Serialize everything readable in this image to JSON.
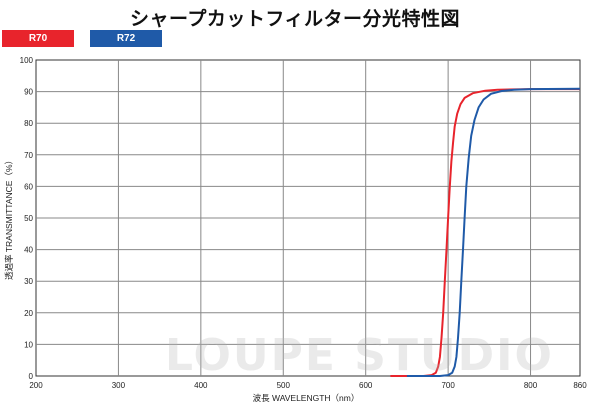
{
  "chart_data": {
    "type": "line",
    "title": "シャープカットフィルター分光特性図",
    "xlabel": "波長  WAVELENGTH（nm）",
    "ylabel": "透過率 TRANSMITTANCE（%）",
    "xlim": [
      200,
      860
    ],
    "ylim": [
      0,
      100
    ],
    "x_ticks": [
      "200",
      "300",
      "400",
      "500",
      "600",
      "700",
      "800",
      "860"
    ],
    "y_ticks": [
      "0",
      "10",
      "20",
      "30",
      "40",
      "50",
      "60",
      "70",
      "80",
      "90",
      "100"
    ],
    "grid": true,
    "legend_position": "top-left",
    "series": [
      {
        "name": "R70",
        "color": "#e8242c",
        "points": [
          [
            630,
            0
          ],
          [
            670,
            0
          ],
          [
            680,
            0.3
          ],
          [
            685,
            1
          ],
          [
            688,
            3
          ],
          [
            690,
            6
          ],
          [
            692,
            12
          ],
          [
            694,
            20
          ],
          [
            696,
            30
          ],
          [
            698,
            40
          ],
          [
            700,
            50
          ],
          [
            702,
            60
          ],
          [
            704,
            68
          ],
          [
            706,
            74
          ],
          [
            708,
            79
          ],
          [
            711,
            83
          ],
          [
            715,
            86
          ],
          [
            720,
            88
          ],
          [
            730,
            89.5
          ],
          [
            745,
            90.3
          ],
          [
            760,
            90.6
          ],
          [
            800,
            90.8
          ],
          [
            860,
            90.8
          ]
        ]
      },
      {
        "name": "R72",
        "color": "#1f5aa8",
        "points": [
          [
            650,
            0
          ],
          [
            690,
            0
          ],
          [
            700,
            0.3
          ],
          [
            705,
            1
          ],
          [
            708,
            3
          ],
          [
            710,
            6
          ],
          [
            712,
            12
          ],
          [
            714,
            20
          ],
          [
            716,
            30
          ],
          [
            718,
            40
          ],
          [
            720,
            50
          ],
          [
            722,
            60
          ],
          [
            725,
            69
          ],
          [
            728,
            76
          ],
          [
            732,
            81
          ],
          [
            737,
            85
          ],
          [
            743,
            87.5
          ],
          [
            752,
            89.3
          ],
          [
            765,
            90.2
          ],
          [
            780,
            90.6
          ],
          [
            800,
            90.8
          ],
          [
            860,
            90.9
          ]
        ]
      }
    ]
  },
  "watermark": "LOUPE STUDIO"
}
